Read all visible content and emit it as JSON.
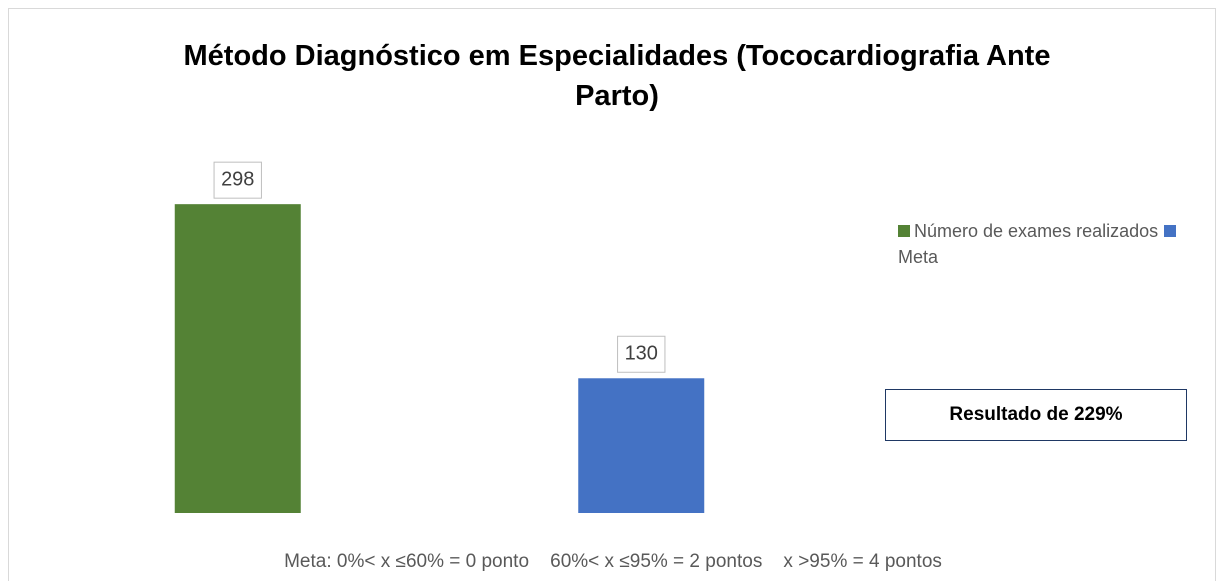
{
  "chart_data": {
    "type": "bar",
    "title": "Método Diagnóstico em Especialidades (Tococardiografia Ante Parto)",
    "categories": [
      null
    ],
    "series": [
      {
        "name": "Número de exames realizados",
        "color": "#548235",
        "values": [
          298
        ]
      },
      {
        "name": "Meta",
        "color": "#4472c4",
        "values": [
          130
        ]
      }
    ],
    "ylim": [
      0,
      330
    ],
    "legend": "right",
    "annotations": [
      "Resultado de 229%",
      "Meta: 0%< x ≤60% = 0 ponto    60%< x ≤95% = 2 pontos    x >95% = 4 pontos"
    ]
  }
}
